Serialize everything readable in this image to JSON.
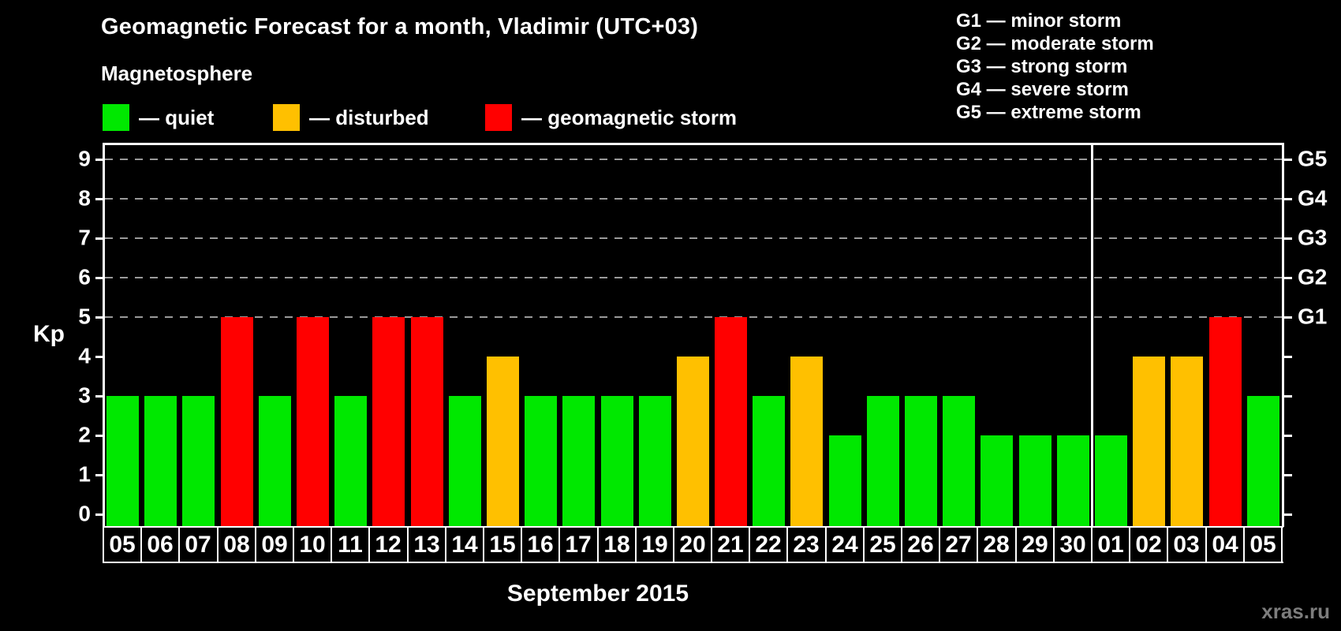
{
  "title": "Geomagnetic Forecast for a month, Vladimir (UTC+03)",
  "subtitle": "Magnetosphere",
  "legend": {
    "items": [
      {
        "key": "quiet",
        "label": "— quiet",
        "color": "#00E800"
      },
      {
        "key": "disturbed",
        "label": "— disturbed",
        "color": "#FFC000"
      },
      {
        "key": "storm",
        "label": "— geomagnetic storm",
        "color": "#FF0000"
      }
    ]
  },
  "g_legend": [
    "G1 — minor storm",
    "G2 — moderate storm",
    "G3 — strong storm",
    "G4 — severe storm",
    "G5 — extreme storm"
  ],
  "watermark": "xras.ru",
  "chart_data": {
    "type": "bar",
    "title": "Geomagnetic Forecast for a month, Vladimir (UTC+03)",
    "xlabel": "September 2015",
    "ylabel": "Kp",
    "ylim": [
      0,
      9
    ],
    "yticks": [
      "0",
      "1",
      "2",
      "3",
      "4",
      "5",
      "6",
      "7",
      "8",
      "9"
    ],
    "gridlines_at": [
      5,
      6,
      7,
      8,
      9
    ],
    "grid": "dashed-horizontal",
    "right_axis_labels": [
      {
        "label": "G1",
        "kp": 5
      },
      {
        "label": "G2",
        "kp": 6
      },
      {
        "label": "G3",
        "kp": 7
      },
      {
        "label": "G4",
        "kp": 8
      },
      {
        "label": "G5",
        "kp": 9
      }
    ],
    "categories": [
      "05",
      "06",
      "07",
      "08",
      "09",
      "10",
      "11",
      "12",
      "13",
      "14",
      "15",
      "16",
      "17",
      "18",
      "19",
      "20",
      "21",
      "22",
      "23",
      "24",
      "25",
      "26",
      "27",
      "28",
      "29",
      "30",
      "01",
      "02",
      "03",
      "04",
      "05"
    ],
    "values": [
      3,
      3,
      3,
      5,
      3,
      5,
      3,
      5,
      5,
      3,
      4,
      3,
      3,
      3,
      3,
      4,
      5,
      3,
      4,
      2,
      3,
      3,
      3,
      2,
      2,
      2,
      2,
      4,
      4,
      5,
      3
    ],
    "statuses": [
      "quiet",
      "quiet",
      "quiet",
      "storm",
      "quiet",
      "storm",
      "quiet",
      "storm",
      "storm",
      "quiet",
      "disturbed",
      "quiet",
      "quiet",
      "quiet",
      "quiet",
      "disturbed",
      "storm",
      "quiet",
      "disturbed",
      "quiet",
      "quiet",
      "quiet",
      "quiet",
      "quiet",
      "quiet",
      "quiet",
      "quiet",
      "disturbed",
      "disturbed",
      "storm",
      "quiet"
    ],
    "status_colors": {
      "quiet": "#00E800",
      "disturbed": "#FFC000",
      "storm": "#FF0000"
    },
    "month_separator_after_index": 25
  }
}
